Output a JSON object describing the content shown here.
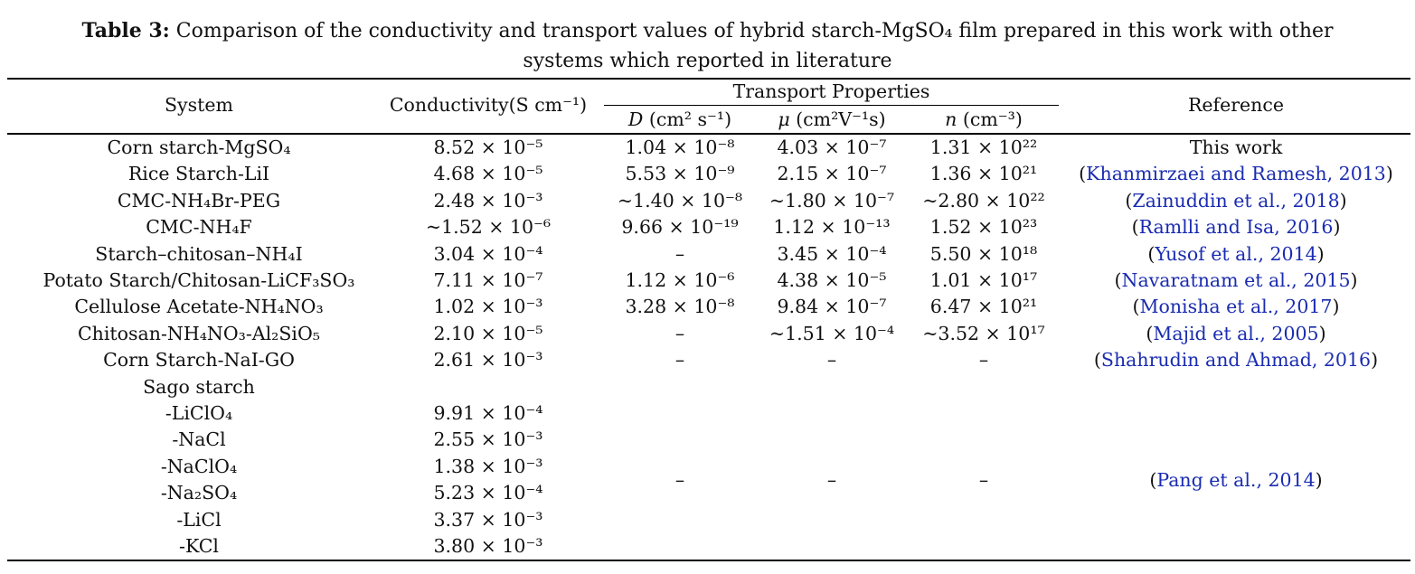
{
  "caption": {
    "label": "Table 3:",
    "line1": "Comparison of the conductivity and transport values of hybrid starch-MgSO₄ film prepared in this work with other",
    "line2": "systems which reported in literature"
  },
  "headers": {
    "system": "System",
    "conductivity": "Conductivity(S cm⁻¹)",
    "transport_group": "Transport Properties",
    "D_sym": "D",
    "D_unit": " (cm² s⁻¹)",
    "mu_sym": "μ",
    "mu_unit": " (cm²V⁻¹s)",
    "n_sym": "n",
    "n_unit": " (cm⁻³)",
    "reference": "Reference"
  },
  "rows": [
    {
      "system": "Corn starch-MgSO₄",
      "cond": "8.52 × 10⁻⁵",
      "D": "1.04 × 10⁻⁸",
      "mu": "4.03 × 10⁻⁷",
      "n": "1.31 × 10²²",
      "ref": "This work",
      "ref_link": false
    },
    {
      "system": "Rice Starch-LiI",
      "cond": "4.68 × 10⁻⁵",
      "D": "5.53 × 10⁻⁹",
      "mu": "2.15 × 10⁻⁷",
      "n": "1.36 × 10²¹",
      "ref": "Khanmirzaei and Ramesh, 2013",
      "ref_link": true
    },
    {
      "system": "CMC-NH₄Br-PEG",
      "cond": "2.48 × 10⁻³",
      "D": "~1.40 × 10⁻⁸",
      "mu": "~1.80 × 10⁻⁷",
      "n": "~2.80 × 10²²",
      "ref": "Zainuddin et al., 2018",
      "ref_link": true
    },
    {
      "system": "CMC-NH₄F",
      "cond": "~1.52 × 10⁻⁶",
      "D": "9.66 × 10⁻¹⁹",
      "mu": "1.12 × 10⁻¹³",
      "n": "1.52 × 10²³",
      "ref": "Ramlli and Isa, 2016",
      "ref_link": true
    },
    {
      "system": "Starch–chitosan–NH₄I",
      "cond": "3.04 × 10⁻⁴",
      "D": "–",
      "mu": "3.45 × 10⁻⁴",
      "n": "5.50 × 10¹⁸",
      "ref": "Yusof et al., 2014",
      "ref_link": true
    },
    {
      "system": "Potato Starch/Chitosan-LiCF₃SO₃",
      "cond": "7.11 × 10⁻⁷",
      "D": "1.12 × 10⁻⁶",
      "mu": "4.38 × 10⁻⁵",
      "n": "1.01 × 10¹⁷",
      "ref": "Navaratnam et al., 2015",
      "ref_link": true
    },
    {
      "system": "Cellulose Acetate-NH₄NO₃",
      "cond": "1.02 × 10⁻³",
      "D": "3.28 × 10⁻⁸",
      "mu": "9.84 × 10⁻⁷",
      "n": "6.47 × 10²¹",
      "ref": "Monisha et al., 2017",
      "ref_link": true
    },
    {
      "system": "Chitosan-NH₄NO₃-Al₂SiO₅",
      "cond": "2.10 × 10⁻⁵",
      "D": "–",
      "mu": "~1.51 × 10⁻⁴",
      "n": "~3.52 × 10¹⁷",
      "ref": "Majid et al., 2005",
      "ref_link": true
    },
    {
      "system": "Corn  Starch-NaI-GO",
      "cond": "2.61 × 10⁻³",
      "D": "–",
      "mu": "–",
      "n": "–",
      "ref": "Shahrudin and Ahmad, 2016",
      "ref_link": true
    }
  ],
  "sago": {
    "title": "Sago starch",
    "items": [
      {
        "system": "-LiClO₄",
        "cond": "9.91 × 10⁻⁴"
      },
      {
        "system": "-NaCl",
        "cond": "2.55 × 10⁻³"
      },
      {
        "system": "-NaClO₄",
        "cond": "1.38 × 10⁻³"
      },
      {
        "system": "-Na₂SO₄",
        "cond": "5.23 × 10⁻⁴"
      },
      {
        "system": "-LiCl",
        "cond": "3.37 × 10⁻³"
      },
      {
        "system": "-KCl",
        "cond": "3.80 × 10⁻³"
      }
    ],
    "D": "–",
    "mu": "–",
    "n": "–",
    "ref": "Pang et al., 2014"
  }
}
